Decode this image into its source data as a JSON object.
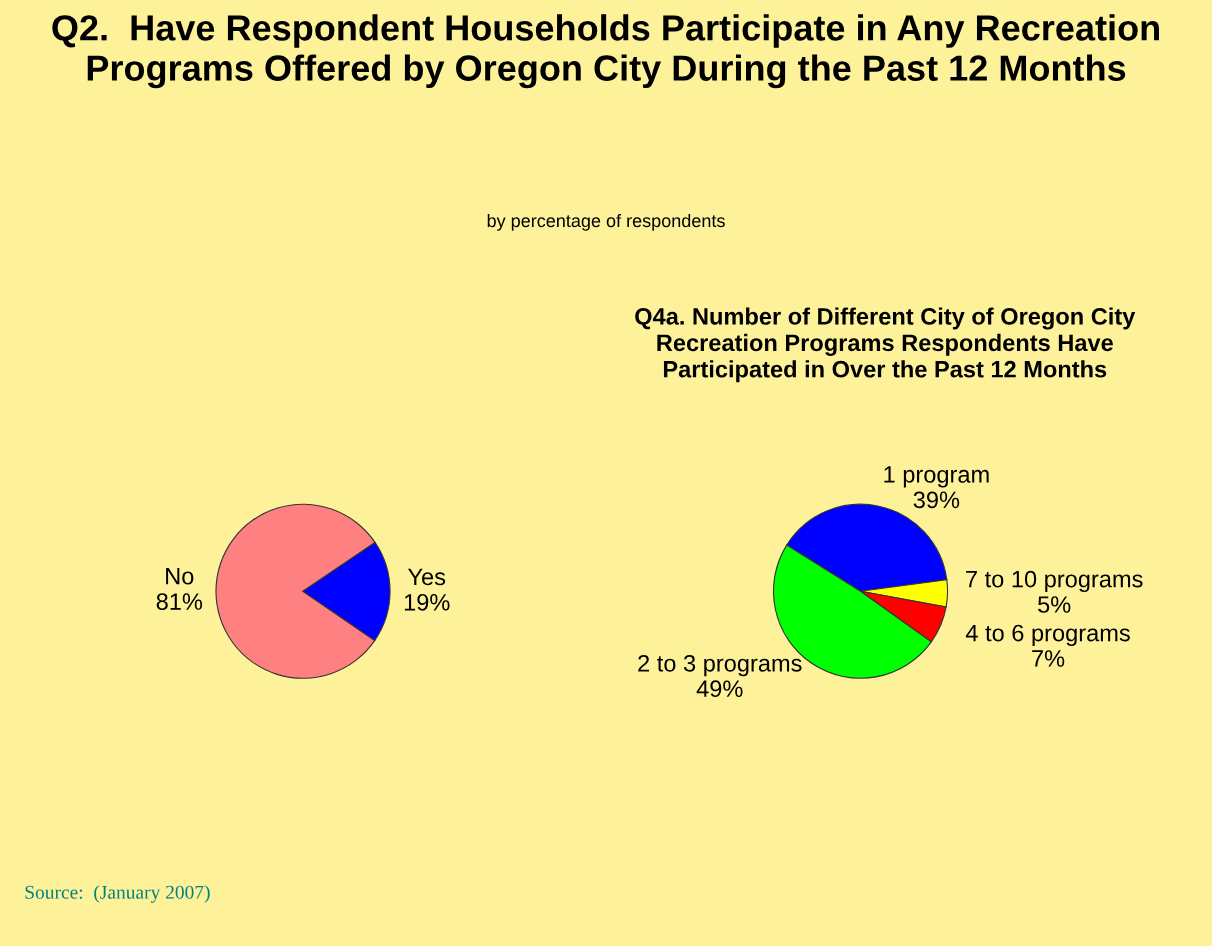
{
  "chart_data": [
    {
      "type": "pie",
      "title": "Q2.  Have Respondent Households Participate in Any Recreation\nPrograms Offered by Oregon City During the Past 12 Months",
      "subtitle": "by percentage of respondents",
      "categories": [
        "No",
        "Yes"
      ],
      "values": [
        81,
        19
      ],
      "value_labels": [
        "81%",
        "19%"
      ],
      "colors": [
        "#ff8080",
        "#0000ff"
      ],
      "annotations": [
        "Source:  (January 2007)"
      ]
    },
    {
      "type": "pie",
      "title": "Q4a. Number of Different City of Oregon City\nRecreation Programs Respondents Have\nParticipated in Over the Past 12 Months",
      "categories": [
        "1 program",
        "7 to 10 programs",
        "4 to 6 programs",
        "2 to 3 programs"
      ],
      "values": [
        39,
        5,
        7,
        49
      ],
      "value_labels": [
        "39%",
        "5%",
        "7%",
        "49%"
      ],
      "colors": [
        "#0000ff",
        "#ffff00",
        "#ff0000",
        "#00ff00"
      ]
    }
  ]
}
